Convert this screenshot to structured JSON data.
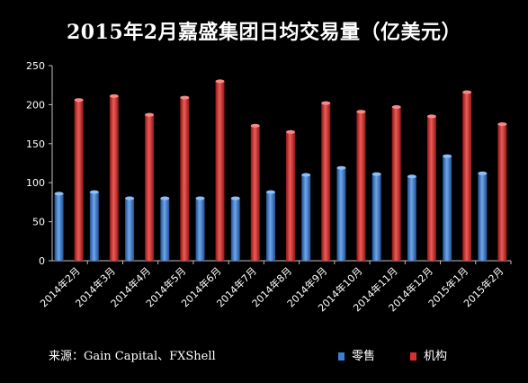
{
  "chart_data": {
    "type": "bar",
    "title": "2015年2月嘉盛集团日均交易量（亿美元）",
    "categories": [
      "2014年2月",
      "2014年3月",
      "2014年4月",
      "2014年5月",
      "2014年6月",
      "2014年7月",
      "2014年8月",
      "2014年9月",
      "2014年10月",
      "2014年11月",
      "2014年12月",
      "2015年1月",
      "2015年2月"
    ],
    "series": [
      {
        "name": "零售",
        "color": "#3d7ed3",
        "values": [
          86,
          88,
          80,
          80,
          80,
          80,
          88,
          110,
          119,
          111,
          108,
          134,
          112
        ]
      },
      {
        "name": "机构",
        "color": "#d9302e",
        "values": [
          206,
          211,
          187,
          209,
          230,
          173,
          165,
          202,
          191,
          197,
          185,
          216,
          175
        ]
      }
    ],
    "ylim": [
      0,
      250
    ],
    "yticks": [
      0,
      50,
      100,
      150,
      200,
      250
    ],
    "grid": false,
    "legend_position": "bottom"
  },
  "source": "来源：Gain Capital、FXShell"
}
